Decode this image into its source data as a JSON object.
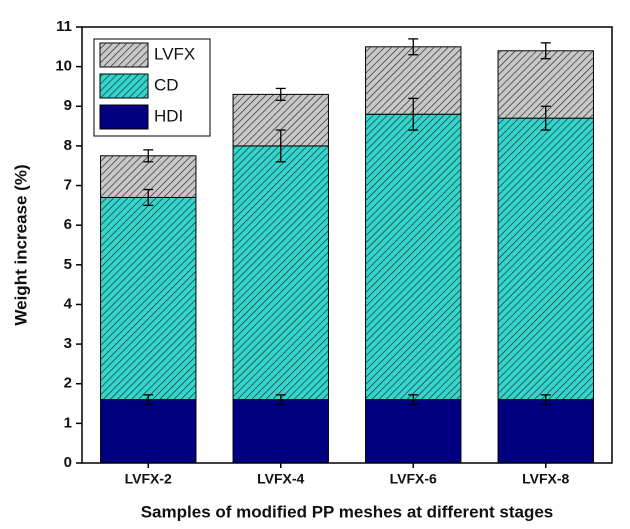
{
  "chart_data": {
    "type": "stacked_bar",
    "xlabel": "Samples of modified PP meshes at different stages",
    "ylabel": "Weight increase (%)",
    "categories": [
      "LVFX-2",
      "LVFX-4",
      "LVFX-6",
      "LVFX-8"
    ],
    "series": [
      {
        "name": "HDI",
        "color": "#000080",
        "hatch": false,
        "values": [
          1.6,
          1.6,
          1.6,
          1.6
        ],
        "errors": [
          0.12,
          0.12,
          0.12,
          0.12
        ]
      },
      {
        "name": "CD",
        "color": "#33d6cc",
        "hatch": true,
        "values": [
          5.1,
          6.4,
          7.2,
          7.1
        ],
        "errors": [
          0.2,
          0.4,
          0.4,
          0.3
        ]
      },
      {
        "name": "LVFX",
        "color": "#c8c8c8",
        "hatch": true,
        "values": [
          1.05,
          1.3,
          1.7,
          1.7
        ],
        "errors": [
          0.15,
          0.15,
          0.2,
          0.2
        ]
      }
    ],
    "ylim": [
      0,
      11
    ],
    "yticks": [
      0,
      1,
      2,
      3,
      4,
      5,
      6,
      7,
      8,
      9,
      10,
      11
    ],
    "legend": "upper left"
  }
}
